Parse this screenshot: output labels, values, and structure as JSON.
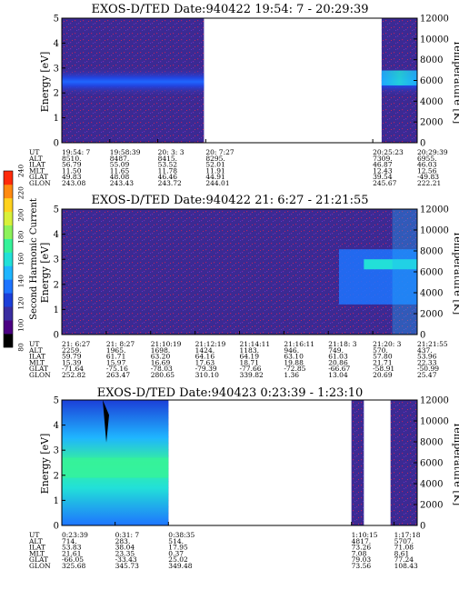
{
  "chart_data": [
    {
      "type": "heatmap",
      "title": "EXOS-D/TED  Date:940422  19:54: 7 - 20:29:39",
      "ylabel": "Energy [eV]",
      "ylabel_right": "Temperature [K]",
      "ylim": [
        0,
        5
      ],
      "ylim_right": [
        0,
        12000
      ],
      "yticks": [
        "0",
        "1",
        "2",
        "3",
        "4",
        "5"
      ],
      "yticks_right": [
        "0",
        "2000",
        "4000",
        "6000",
        "8000",
        "10000",
        "12000"
      ],
      "data_segments": [
        [
          0,
          0.4
        ],
        [
          0.9,
          1.0
        ]
      ],
      "orbit_labels": [
        "UT",
        "ALT",
        "ILAT",
        "MLT",
        "GLAT",
        "GLON"
      ],
      "orbit_columns": [
        {
          "pos": 0.0,
          "values": [
            "19:54: 7",
            "8510.",
            "56.79",
            "11.50",
            "49.83",
            "243.08"
          ]
        },
        {
          "pos": 0.135,
          "values": [
            "19:58:39",
            "8487.",
            "55.09",
            "11.65",
            "48.08",
            "243.43"
          ]
        },
        {
          "pos": 0.27,
          "values": [
            "20: 3: 3",
            "8415.",
            "53.52",
            "11.78",
            "46.46",
            "243.72"
          ]
        },
        {
          "pos": 0.405,
          "values": [
            "20: 7:27",
            "8295.",
            "52.01",
            "11.91",
            "44.91",
            "244.01"
          ]
        },
        {
          "pos": 0.875,
          "values": [
            "20:25:23",
            "7309.",
            "46.87",
            "12.43",
            "39.54",
            "245.67"
          ]
        },
        {
          "pos": 1.0,
          "values": [
            "20:29:39",
            "6955.",
            "46.03",
            "12.56",
            "-49.83",
            "222.21"
          ]
        }
      ]
    },
    {
      "type": "heatmap",
      "title": "EXOS-D/TED  Date:940422  21: 6:27 - 21:21:55",
      "ylabel": "Energy [eV]",
      "ylabel_right": "Temperature [K]",
      "ylim": [
        0,
        5
      ],
      "ylim_right": [
        0,
        12000
      ],
      "yticks": [
        "0",
        "1",
        "2",
        "3",
        "4",
        "5"
      ],
      "yticks_right": [
        "0",
        "2000",
        "4000",
        "6000",
        "8000",
        "10000",
        "12000"
      ],
      "data_segments": [
        [
          0,
          1.0
        ]
      ],
      "orbit_labels": [
        "UT",
        "ALT",
        "ILAT",
        "MLT",
        "GLAT",
        "GLON"
      ],
      "orbit_columns": [
        {
          "pos": 0.0,
          "values": [
            "21: 6:27",
            "2259.",
            "59.79",
            "15.39",
            "-71.64",
            "252.82"
          ]
        },
        {
          "pos": 0.125,
          "values": [
            "21: 8:27",
            "1965.",
            "61.71",
            "15.97",
            "-75.16",
            "263.47"
          ]
        },
        {
          "pos": 0.25,
          "values": [
            "21:10:19",
            "1698.",
            "63.20",
            "16.69",
            "-78.03",
            "280.65"
          ]
        },
        {
          "pos": 0.375,
          "values": [
            "21:12:19",
            "1424.",
            "64.16",
            "17.63",
            "-79.39",
            "310.10"
          ]
        },
        {
          "pos": 0.5,
          "values": [
            "21:14:11",
            "1183.",
            "64.19",
            "18.71",
            "-77.66",
            "339.82"
          ]
        },
        {
          "pos": 0.625,
          "values": [
            "21:16:11",
            "946.",
            "63.10",
            "19.88",
            "-72.85",
            "1.36"
          ]
        },
        {
          "pos": 0.75,
          "values": [
            "21:18: 3",
            "749.",
            "61.03",
            "20.86",
            "-66.67",
            "13.04"
          ]
        },
        {
          "pos": 0.875,
          "values": [
            "21:20: 3",
            "570.",
            "57.80",
            "21.71",
            "-58.91",
            "20.69"
          ]
        },
        {
          "pos": 1.0,
          "values": [
            "21:21:55",
            "437.",
            "53.96",
            "22.33",
            "-50.99",
            "25.47"
          ]
        }
      ]
    },
    {
      "type": "heatmap",
      "title": "EXOS-D/TED  Date:940423  0:23:39 - 1:23:10",
      "ylabel": "Energy [eV]",
      "ylabel_right": "Temperature [K]",
      "ylim": [
        0,
        5
      ],
      "ylim_right": [
        0,
        12000
      ],
      "yticks": [
        "0",
        "1",
        "2",
        "3",
        "4",
        "5"
      ],
      "yticks_right": [
        "0",
        "2000",
        "4000",
        "6000",
        "8000",
        "10000",
        "12000"
      ],
      "data_segments": [
        [
          0,
          0.3
        ],
        [
          0.815,
          0.85
        ],
        [
          0.925,
          1.0
        ]
      ],
      "orbit_labels": [
        "UT",
        "ALT",
        "ILAT",
        "MLT",
        "GLAT",
        "GLON"
      ],
      "orbit_columns": [
        {
          "pos": 0.0,
          "values": [
            "0:23:39",
            "714.",
            "53.83",
            "21.61",
            "-66.05",
            "325.68"
          ]
        },
        {
          "pos": 0.15,
          "values": [
            "0:31: 7",
            "283.",
            "38.04",
            "23.35",
            "-33.43",
            "345.73"
          ]
        },
        {
          "pos": 0.3,
          "values": [
            "0:38:35",
            "514.",
            "17.95",
            "0.37",
            "25.02",
            "349.48"
          ]
        },
        {
          "pos": 0.815,
          "values": [
            "1:10:15",
            "4817.",
            "73.26",
            "7.08",
            "79.03",
            "73.56"
          ]
        },
        {
          "pos": 0.935,
          "values": [
            "1:17:18",
            "5707.",
            "71.08",
            "8.61",
            "77.24",
            "108.43"
          ]
        }
      ]
    }
  ],
  "colorbar": {
    "label": "Second Harmonic Current",
    "ticks": [
      "80",
      "100",
      "120",
      "140",
      "160",
      "180",
      "200",
      "220",
      "240"
    ],
    "colors": [
      "#000000",
      "#4b0082",
      "#3a2ea0",
      "#1c3fd8",
      "#1e74ff",
      "#1fb5ff",
      "#22e0d8",
      "#36f29a",
      "#8cf25a",
      "#d8f03a",
      "#ffd21e",
      "#ff8a10",
      "#ff2a0a"
    ]
  }
}
